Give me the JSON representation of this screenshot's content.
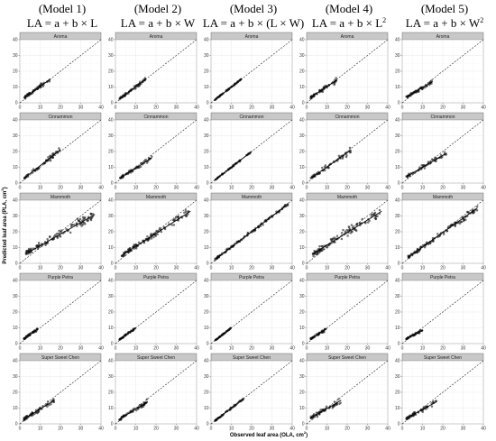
{
  "models": [
    {
      "title": "(Model 1)",
      "eq_main": "LA = a + b × L",
      "eq_sup": ""
    },
    {
      "title": "(Model 2)",
      "eq_main": "LA = a + b × W",
      "eq_sup": ""
    },
    {
      "title": "(Model 3)",
      "eq_main": "LA = a + b × (L × W)",
      "eq_sup": ""
    },
    {
      "title": "(Model 4)",
      "eq_main": "LA = a + b × L",
      "eq_sup": "2"
    },
    {
      "title": "(Model 5)",
      "eq_main": "LA = a + b × W",
      "eq_sup": "2"
    }
  ],
  "axes": {
    "xlabel_main": "Observed leaf area (OLA, cm",
    "xlabel_sup": "2",
    "xlabel_end": ")",
    "ylabel_main": "Predicted leaf area (PLA, cm",
    "ylabel_sup": "2",
    "ylabel_end": ")"
  },
  "chart_data": {
    "type": "scatter",
    "layout": "facet grid: rows = cultivars, columns = models",
    "rows": [
      "Aroma",
      "Cinnammon",
      "Mammoth",
      "Purple Petra",
      "Super Sweet Chen"
    ],
    "columns": [
      "(Model 1)",
      "(Model 2)",
      "(Model 3)",
      "(Model 4)",
      "(Model 5)"
    ],
    "xlim": [
      0,
      40
    ],
    "ylim": [
      0,
      40
    ],
    "x_ticks": [
      0,
      10,
      20,
      30,
      40
    ],
    "y_ticks": [
      0,
      10,
      20,
      30,
      40
    ],
    "reference_line": "1:1 dashed",
    "grid": true,
    "panels": [
      {
        "row": "Aroma",
        "column": "(Model 1)",
        "x_range": [
          2,
          15
        ],
        "y_fit": [
          [
            2,
            3
          ],
          [
            15,
            15
          ]
        ],
        "spread": 1.3,
        "n": 60
      },
      {
        "row": "Aroma",
        "column": "(Model 2)",
        "x_range": [
          2,
          15
        ],
        "y_fit": [
          [
            2,
            2.5
          ],
          [
            15,
            15
          ]
        ],
        "spread": 1.0,
        "n": 60
      },
      {
        "row": "Aroma",
        "column": "(Model 3)",
        "x_range": [
          2,
          15
        ],
        "y_fit": [
          [
            2,
            2
          ],
          [
            15,
            15
          ]
        ],
        "spread": 0.4,
        "n": 60
      },
      {
        "row": "Aroma",
        "column": "(Model 4)",
        "x_range": [
          2,
          15
        ],
        "y_fit": [
          [
            2,
            3.5
          ],
          [
            15,
            14.5
          ]
        ],
        "spread": 1.4,
        "n": 60
      },
      {
        "row": "Aroma",
        "column": "(Model 5)",
        "x_range": [
          2,
          15
        ],
        "y_fit": [
          [
            2,
            3.5
          ],
          [
            15,
            13.5
          ]
        ],
        "spread": 1.0,
        "n": 60
      },
      {
        "row": "Cinnammon",
        "column": "(Model 1)",
        "x_range": [
          2,
          20
        ],
        "y_fit": [
          [
            2,
            3
          ],
          [
            20,
            21
          ]
        ],
        "spread": 1.5,
        "n": 55
      },
      {
        "row": "Cinnammon",
        "column": "(Model 2)",
        "x_range": [
          2,
          18
        ],
        "y_fit": [
          [
            2,
            3
          ],
          [
            18,
            16
          ]
        ],
        "spread": 1.0,
        "n": 55
      },
      {
        "row": "Cinnammon",
        "column": "(Model 3)",
        "x_range": [
          2,
          20
        ],
        "y_fit": [
          [
            2,
            2
          ],
          [
            20,
            20
          ]
        ],
        "spread": 0.4,
        "n": 55
      },
      {
        "row": "Cinnammon",
        "column": "(Model 4)",
        "x_range": [
          2,
          22
        ],
        "y_fit": [
          [
            2,
            3
          ],
          [
            22,
            21
          ]
        ],
        "spread": 1.8,
        "n": 55
      },
      {
        "row": "Cinnammon",
        "column": "(Model 5)",
        "x_range": [
          2,
          22
        ],
        "y_fit": [
          [
            2,
            4
          ],
          [
            22,
            19
          ]
        ],
        "spread": 1.4,
        "n": 55
      },
      {
        "row": "Mammoth",
        "column": "(Model 1)",
        "x_range": [
          3,
          37
        ],
        "y_fit": [
          [
            3,
            6
          ],
          [
            37,
            31
          ]
        ],
        "spread": 2.8,
        "n": 110
      },
      {
        "row": "Mammoth",
        "column": "(Model 2)",
        "x_range": [
          3,
          37
        ],
        "y_fit": [
          [
            3,
            5
          ],
          [
            37,
            33
          ]
        ],
        "spread": 2.2,
        "n": 110
      },
      {
        "row": "Mammoth",
        "column": "(Model 3)",
        "x_range": [
          2,
          38
        ],
        "y_fit": [
          [
            2,
            2.5
          ],
          [
            38,
            37.5
          ]
        ],
        "spread": 1.0,
        "n": 110
      },
      {
        "row": "Mammoth",
        "column": "(Model 4)",
        "x_range": [
          3,
          37
        ],
        "y_fit": [
          [
            3,
            6
          ],
          [
            37,
            33
          ]
        ],
        "spread": 2.8,
        "n": 110
      },
      {
        "row": "Mammoth",
        "column": "(Model 5)",
        "x_range": [
          3,
          37
        ],
        "y_fit": [
          [
            3,
            4
          ],
          [
            37,
            35
          ]
        ],
        "spread": 2.0,
        "n": 110
      },
      {
        "row": "Purple Petra",
        "column": "(Model 1)",
        "x_range": [
          2,
          9
        ],
        "y_fit": [
          [
            2,
            3
          ],
          [
            9,
            9.5
          ]
        ],
        "spread": 0.8,
        "n": 45
      },
      {
        "row": "Purple Petra",
        "column": "(Model 2)",
        "x_range": [
          2,
          10
        ],
        "y_fit": [
          [
            2,
            2.5
          ],
          [
            10,
            10
          ]
        ],
        "spread": 0.6,
        "n": 45
      },
      {
        "row": "Purple Petra",
        "column": "(Model 3)",
        "x_range": [
          2,
          10
        ],
        "y_fit": [
          [
            2,
            2
          ],
          [
            10,
            10
          ]
        ],
        "spread": 0.3,
        "n": 45
      },
      {
        "row": "Purple Petra",
        "column": "(Model 4)",
        "x_range": [
          2,
          10
        ],
        "y_fit": [
          [
            2,
            3
          ],
          [
            10,
            9.5
          ]
        ],
        "spread": 0.8,
        "n": 45
      },
      {
        "row": "Purple Petra",
        "column": "(Model 5)",
        "x_range": [
          2,
          10
        ],
        "y_fit": [
          [
            2,
            3
          ],
          [
            10,
            8.5
          ]
        ],
        "spread": 0.6,
        "n": 45
      },
      {
        "row": "Super Sweet Chen",
        "column": "(Model 1)",
        "x_range": [
          2,
          17
        ],
        "y_fit": [
          [
            2,
            3
          ],
          [
            17,
            15
          ]
        ],
        "spread": 1.8,
        "n": 60
      },
      {
        "row": "Super Sweet Chen",
        "column": "(Model 2)",
        "x_range": [
          2,
          16
        ],
        "y_fit": [
          [
            2,
            3
          ],
          [
            16,
            14
          ]
        ],
        "spread": 1.3,
        "n": 60
      },
      {
        "row": "Super Sweet Chen",
        "column": "(Model 3)",
        "x_range": [
          2,
          16
        ],
        "y_fit": [
          [
            2,
            2
          ],
          [
            16,
            16
          ]
        ],
        "spread": 0.5,
        "n": 60
      },
      {
        "row": "Super Sweet Chen",
        "column": "(Model 4)",
        "x_range": [
          2,
          17
        ],
        "y_fit": [
          [
            2,
            3.5
          ],
          [
            17,
            15
          ]
        ],
        "spread": 1.8,
        "n": 60
      },
      {
        "row": "Super Sweet Chen",
        "column": "(Model 5)",
        "x_range": [
          2,
          17
        ],
        "y_fit": [
          [
            2,
            3.5
          ],
          [
            17,
            14
          ]
        ],
        "spread": 1.3,
        "n": 60
      }
    ]
  }
}
